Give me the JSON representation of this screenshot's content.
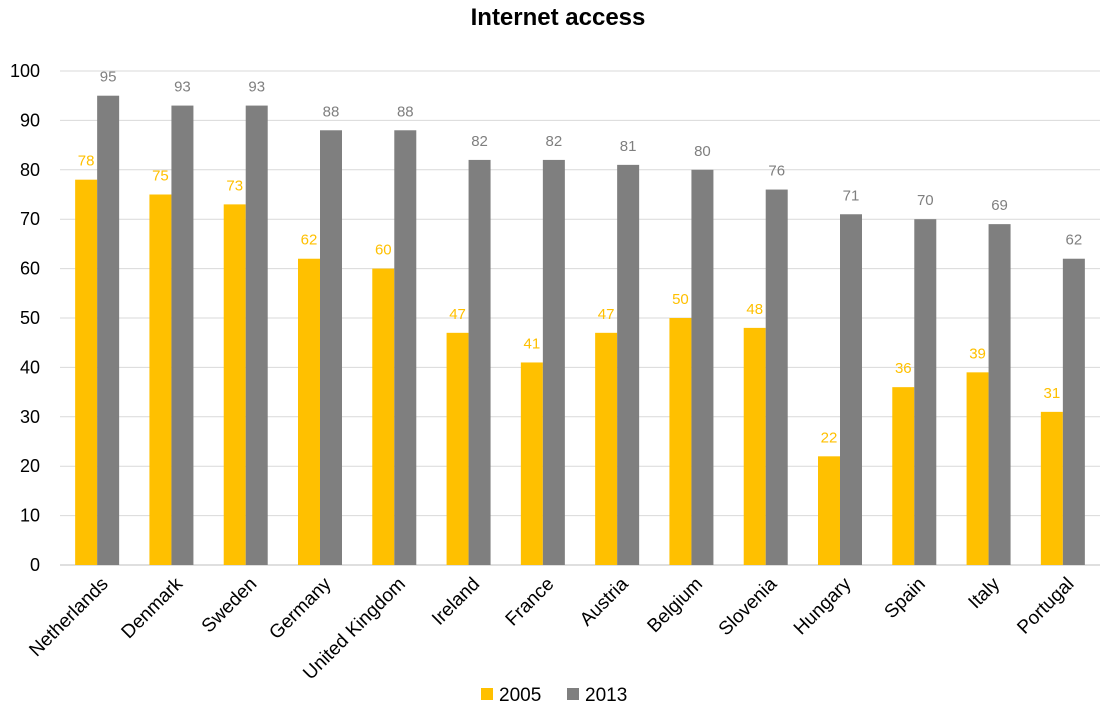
{
  "chart_data": {
    "type": "bar",
    "title": "Internet access",
    "xlabel": "",
    "ylabel": "",
    "ylim": [
      0,
      100
    ],
    "yticks": [
      0,
      10,
      20,
      30,
      40,
      50,
      60,
      70,
      80,
      90,
      100
    ],
    "grid": true,
    "legend_position": "bottom",
    "categories": [
      "Netherlands",
      "Denmark",
      "Sweden",
      "Germany",
      "United Kingdom",
      "Ireland",
      "France",
      "Austria",
      "Belgium",
      "Slovenia",
      "Hungary",
      "Spain",
      "Italy",
      "Portugal"
    ],
    "series": [
      {
        "name": "2005",
        "color": "#ffc000",
        "values": [
          78,
          75,
          73,
          62,
          60,
          47,
          41,
          47,
          50,
          48,
          22,
          36,
          39,
          31
        ]
      },
      {
        "name": "2013",
        "color": "#7f7f7f",
        "values": [
          95,
          93,
          93,
          88,
          88,
          82,
          82,
          81,
          80,
          76,
          71,
          70,
          69,
          62
        ]
      }
    ],
    "data_label_colors": [
      "#ffc000",
      "#7f7f7f"
    ]
  }
}
